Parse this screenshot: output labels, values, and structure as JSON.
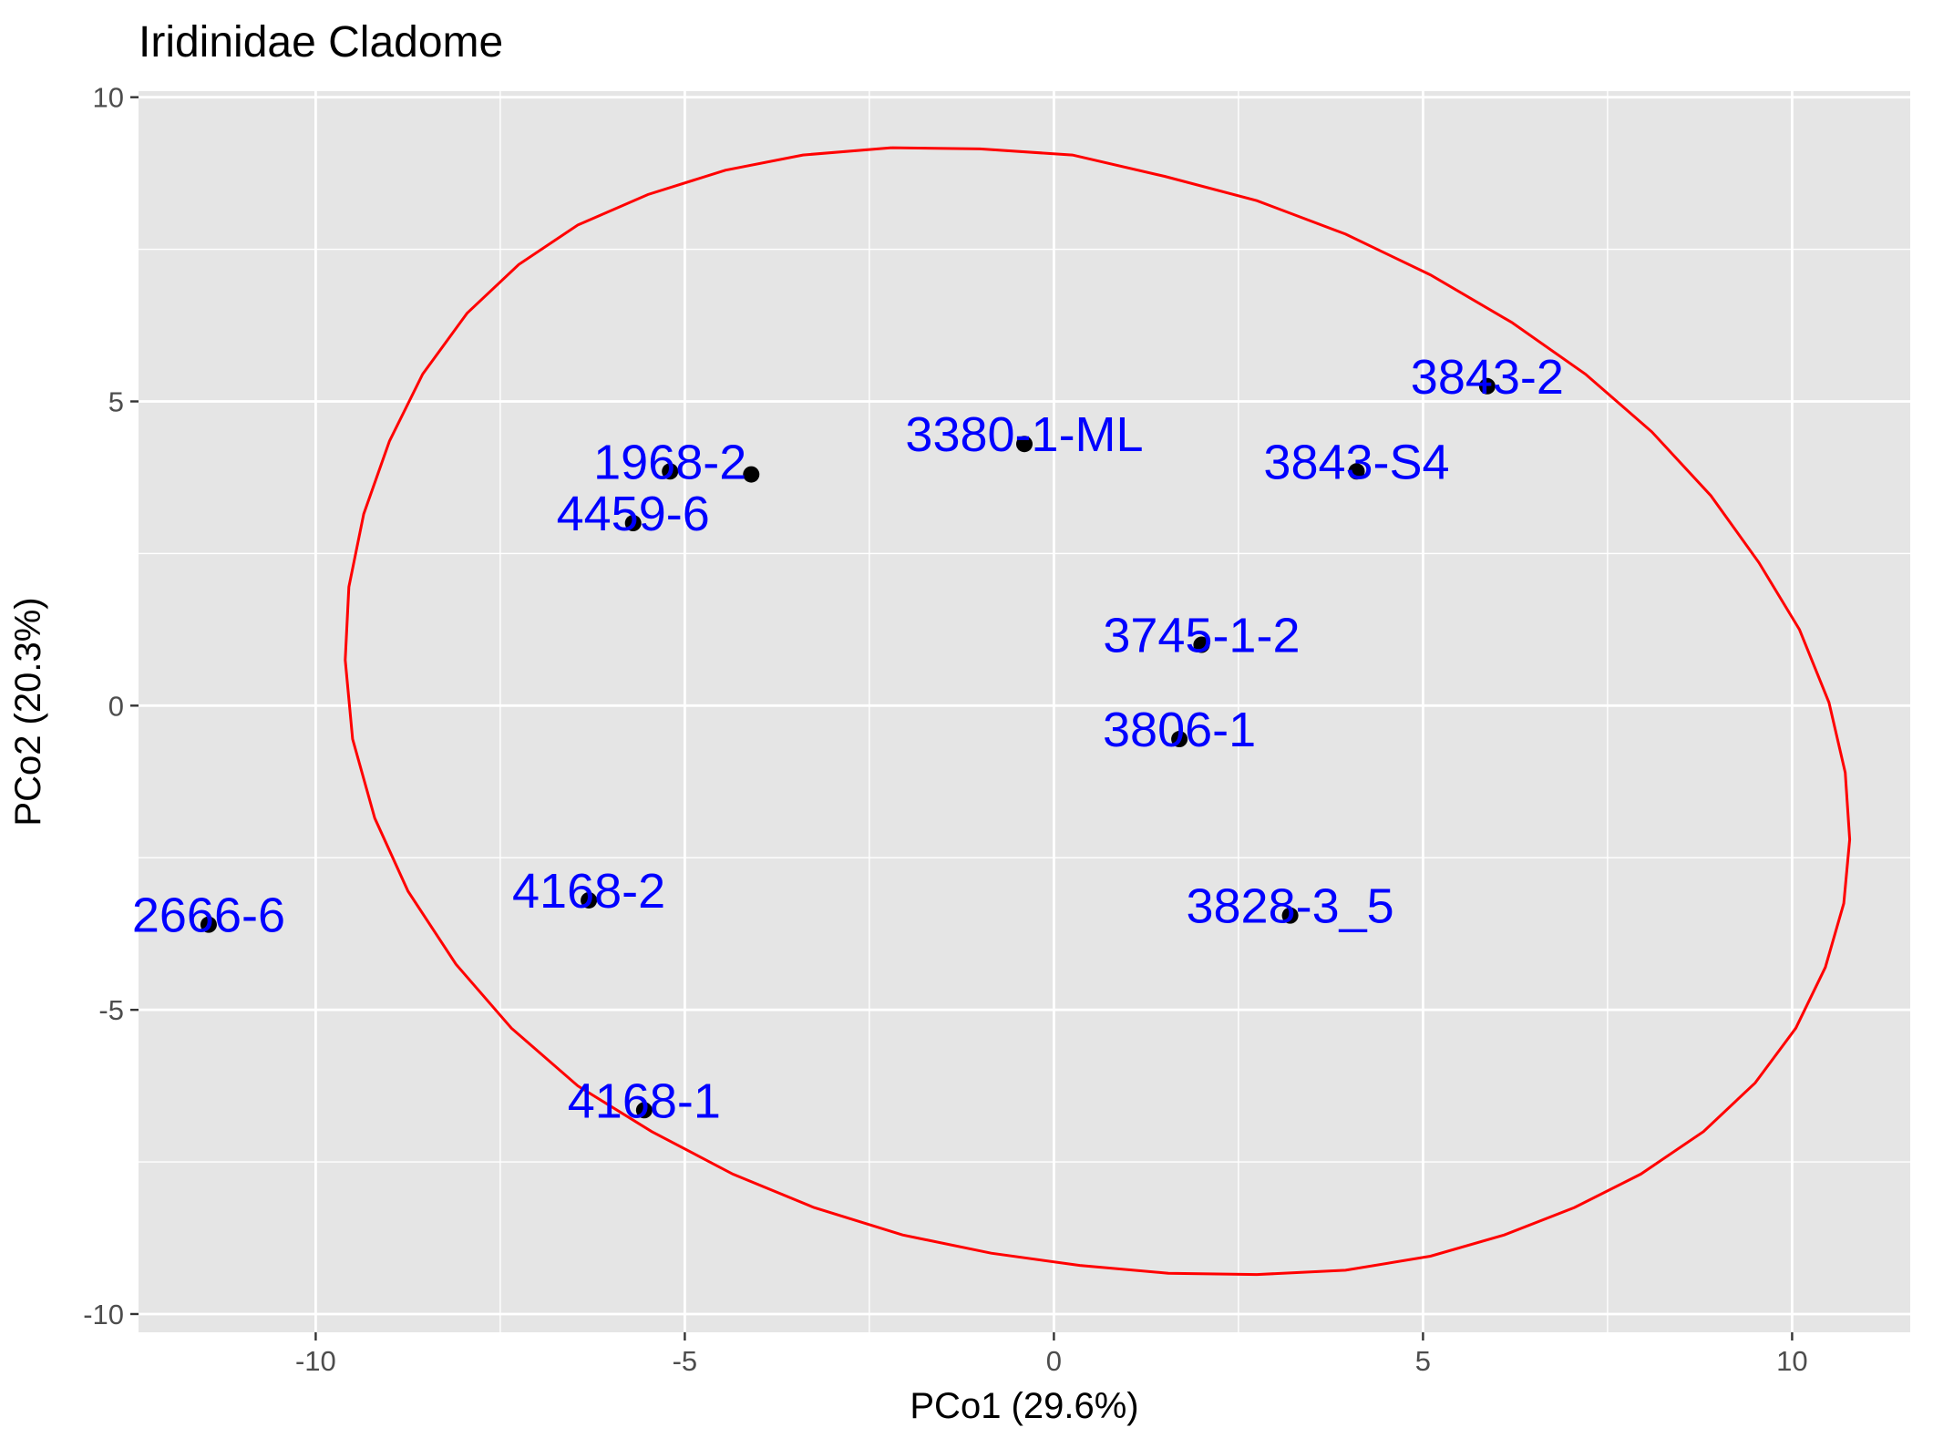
{
  "chart_data": {
    "type": "scatter",
    "title": "Iridinidae Cladome",
    "xlabel": "PCo1 (29.6%)",
    "ylabel": "PCo2 (20.3%)",
    "xlim": [
      -12.4,
      11.6
    ],
    "ylim": [
      -10.3,
      10.1
    ],
    "x_ticks": [
      -10,
      -5,
      0,
      5,
      10
    ],
    "x_tick_labels": [
      "-10",
      "-5",
      "0",
      "5",
      "10"
    ],
    "y_ticks": [
      -10,
      -5,
      0,
      5,
      10
    ],
    "y_tick_labels": [
      "-10",
      "-5",
      "0",
      "5",
      "10"
    ],
    "grid": true,
    "points": [
      {
        "label": "3843-2",
        "x": 5.87,
        "y": 5.25
      },
      {
        "label": "3380-1-ML",
        "x": -0.4,
        "y": 4.3
      },
      {
        "label": "3843-S4",
        "x": 4.1,
        "y": 3.85
      },
      {
        "label": "1968-2",
        "x": -5.2,
        "y": 3.85
      },
      {
        "label": "4459-6",
        "x": -5.7,
        "y": 3.0
      },
      {
        "label": "3745-1-2",
        "x": 2.0,
        "y": 1.0
      },
      {
        "label": "3806-1",
        "x": 1.7,
        "y": -0.55
      },
      {
        "label": "4168-2",
        "x": -6.3,
        "y": -3.2
      },
      {
        "label": "3828-3_5",
        "x": 3.2,
        "y": -3.45
      },
      {
        "label": "2666-6",
        "x": -11.45,
        "y": -3.6
      },
      {
        "label": "4168-1",
        "x": -5.55,
        "y": -6.65
      },
      {
        "label": "",
        "x": -4.1,
        "y": 3.8
      }
    ],
    "ellipse": {
      "color": "#ff0000",
      "points": [
        [
          -2.2,
          9.17
        ],
        [
          -1.0,
          9.15
        ],
        [
          0.25,
          9.05
        ],
        [
          1.5,
          8.7
        ],
        [
          2.75,
          8.3
        ],
        [
          3.95,
          7.75
        ],
        [
          5.1,
          7.08
        ],
        [
          6.2,
          6.3
        ],
        [
          7.2,
          5.45
        ],
        [
          8.1,
          4.5
        ],
        [
          8.9,
          3.45
        ],
        [
          9.55,
          2.35
        ],
        [
          10.1,
          1.25
        ],
        [
          10.5,
          0.05
        ],
        [
          10.72,
          -1.1
        ],
        [
          10.78,
          -2.2
        ],
        [
          10.7,
          -3.25
        ],
        [
          10.45,
          -4.3
        ],
        [
          10.05,
          -5.3
        ],
        [
          9.5,
          -6.2
        ],
        [
          8.8,
          -7.0
        ],
        [
          7.95,
          -7.7
        ],
        [
          7.05,
          -8.25
        ],
        [
          6.1,
          -8.7
        ],
        [
          5.1,
          -9.05
        ],
        [
          3.95,
          -9.28
        ],
        [
          2.75,
          -9.35
        ],
        [
          1.55,
          -9.33
        ],
        [
          0.35,
          -9.2
        ],
        [
          -0.85,
          -9.0
        ],
        [
          -2.05,
          -8.7
        ],
        [
          -3.25,
          -8.25
        ],
        [
          -4.35,
          -7.7
        ],
        [
          -5.45,
          -7.0
        ],
        [
          -6.45,
          -6.25
        ],
        [
          -7.35,
          -5.3
        ],
        [
          -8.1,
          -4.25
        ],
        [
          -8.75,
          -3.05
        ],
        [
          -9.2,
          -1.85
        ],
        [
          -9.5,
          -0.55
        ],
        [
          -9.6,
          0.75
        ],
        [
          -9.55,
          1.95
        ],
        [
          -9.35,
          3.15
        ],
        [
          -9.0,
          4.35
        ],
        [
          -8.55,
          5.45
        ],
        [
          -7.95,
          6.45
        ],
        [
          -7.25,
          7.25
        ],
        [
          -6.45,
          7.9
        ],
        [
          -5.5,
          8.4
        ],
        [
          -4.45,
          8.8
        ],
        [
          -3.4,
          9.05
        ],
        [
          -2.2,
          9.17
        ]
      ]
    },
    "colors": {
      "panel": "#e5e5e5",
      "grid": "#ffffff",
      "point": "#000000",
      "label": "#0000ff",
      "ellipse": "#ff0000"
    }
  }
}
